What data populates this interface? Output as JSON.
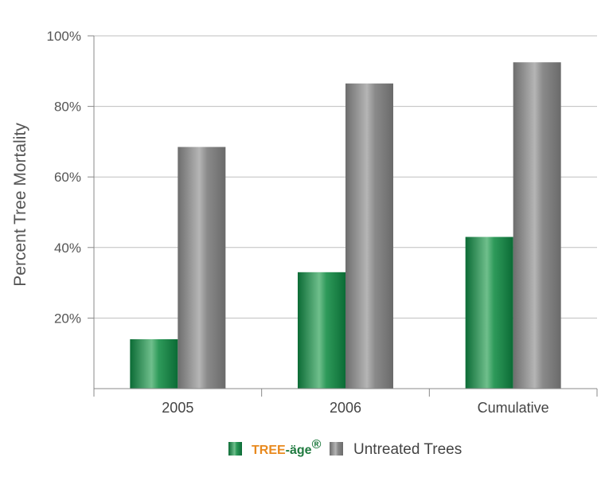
{
  "chart_data": {
    "type": "bar",
    "categories": [
      "2005",
      "2006",
      "Cumulative"
    ],
    "series": [
      {
        "name": "TREE-äge",
        "values": [
          14,
          33,
          43
        ],
        "color": "#0f7a3e"
      },
      {
        "name": "Untreated Trees",
        "values": [
          68.5,
          86.5,
          92.5
        ],
        "color": "#808080"
      }
    ],
    "ylabel": "Percent Tree Mortality",
    "xlabel": "",
    "ylim": [
      0,
      100
    ],
    "yticks": [
      20,
      40,
      60,
      80,
      100
    ],
    "ytick_labels": [
      "20%",
      "40%",
      "60%",
      "80%",
      "100%"
    ],
    "grid": true,
    "legend_position": "bottom"
  },
  "legend": {
    "brand_part1": "TREE",
    "brand_part2": "-äge",
    "brand_mark": "®",
    "untreated_label": "Untreated Trees"
  }
}
